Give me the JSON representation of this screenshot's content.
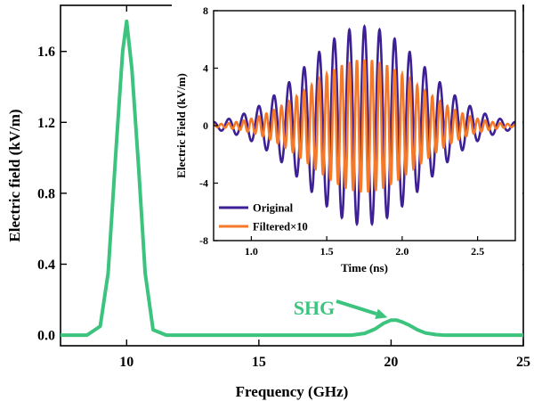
{
  "chart_data": [
    {
      "type": "line",
      "xlabel": "Frequency (GHz)",
      "ylabel": "Electric field (kV/m)",
      "xlim": [
        7.5,
        25
      ],
      "ylim": [
        -0.06,
        1.86
      ],
      "xticks": [
        10,
        15,
        20,
        25
      ],
      "xtick_labels": [
        "10",
        "15",
        "20",
        "25"
      ],
      "yticks": [
        0.0,
        0.4,
        0.8,
        1.2,
        1.6
      ],
      "ytick_labels": [
        "0.0",
        "0.4",
        "0.8",
        "1.2",
        "1.6"
      ],
      "series": [
        {
          "color": "#3cc47e",
          "x": [
            7.5,
            8.0,
            8.5,
            9.0,
            9.3,
            9.6,
            9.85,
            10.0,
            10.2,
            10.45,
            10.7,
            11.0,
            11.5,
            12.0,
            13.0,
            14.0,
            15.0,
            16.0,
            17.0,
            18.0,
            18.5,
            19.0,
            19.4,
            19.7,
            20.0,
            20.2,
            20.4,
            20.7,
            21.0,
            21.3,
            21.7,
            22.0,
            23.0,
            24.0,
            25.0
          ],
          "y": [
            0.0,
            0.0,
            0.0,
            0.05,
            0.35,
            1.05,
            1.6,
            1.77,
            1.5,
            0.95,
            0.35,
            0.03,
            0.0,
            0.0,
            0.0,
            0.0,
            0.0,
            0.0,
            0.0,
            0.0,
            0.0,
            0.01,
            0.035,
            0.065,
            0.085,
            0.085,
            0.075,
            0.055,
            0.03,
            0.012,
            0.003,
            0.0,
            0.0,
            0.0,
            0.0
          ]
        }
      ],
      "annotations": [
        {
          "text": "SHG",
          "color": "#3cc47e",
          "arrow_to": {
            "x": 20.0,
            "y": 0.085
          }
        }
      ]
    },
    {
      "type": "line",
      "inset": true,
      "xlabel": "Time (ns)",
      "ylabel": "Electric Field (kV/m)",
      "xlim": [
        0.75,
        2.75
      ],
      "ylim": [
        -8,
        8
      ],
      "xticks": [
        1.0,
        1.5,
        2.0,
        2.5
      ],
      "xtick_labels": [
        "1.0",
        "1.5",
        "2.0",
        "2.5"
      ],
      "yticks": [
        -8,
        -4,
        0,
        4,
        8
      ],
      "ytick_labels": [
        "-8",
        "-4",
        "0",
        "4",
        "8"
      ],
      "legend": "bottom-left",
      "series": [
        {
          "name": "Original",
          "color": "#3d1f96",
          "model": "gaussian-modulated sinusoid",
          "peak_amplitude": 6.9,
          "center_time_ns": 1.75,
          "carrier_frequency_GHz": 10,
          "envelope_width_ns": 0.55
        },
        {
          "name": "Filtered×10",
          "color": "#f47a2a",
          "model": "gaussian-modulated sinusoid",
          "peak_amplitude": 4.6,
          "center_time_ns": 1.75,
          "carrier_frequency_GHz": 20,
          "envelope_width_ns": 0.5
        }
      ]
    }
  ]
}
